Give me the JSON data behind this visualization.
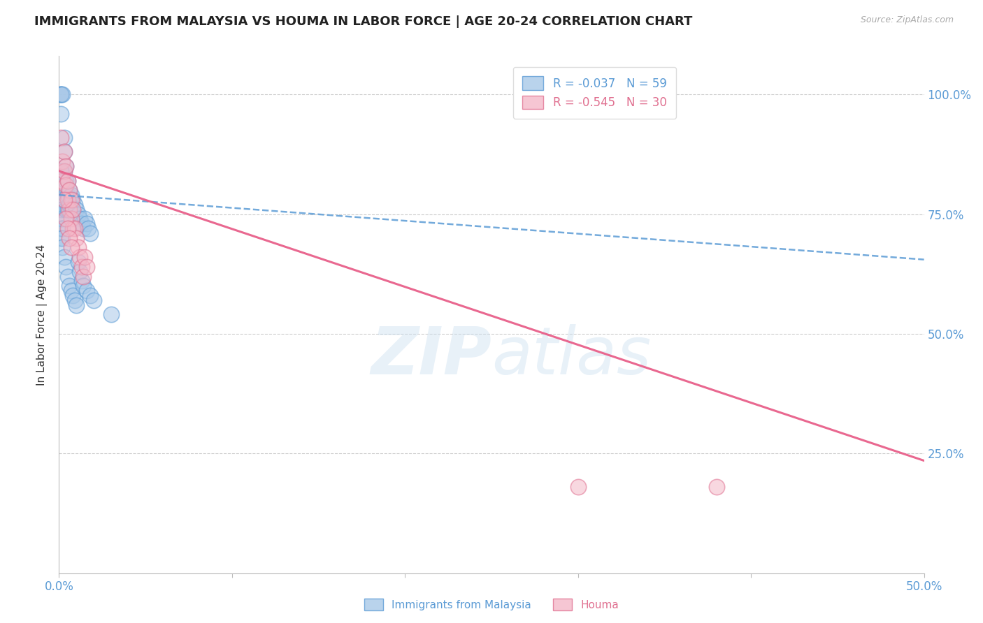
{
  "title": "IMMIGRANTS FROM MALAYSIA VS HOUMA IN LABOR FORCE | AGE 20-24 CORRELATION CHART",
  "source": "Source: ZipAtlas.com",
  "ylabel": "In Labor Force | Age 20-24",
  "xlim": [
    0.0,
    0.5
  ],
  "ylim": [
    0.0,
    1.08
  ],
  "yticks": [
    0.0,
    0.25,
    0.5,
    0.75,
    1.0
  ],
  "ytick_labels": [
    "",
    "25.0%",
    "50.0%",
    "75.0%",
    "100.0%"
  ],
  "background_color": "#ffffff",
  "blue_fill": "#a8c8e8",
  "blue_edge": "#5b9bd5",
  "pink_fill": "#f4b8c8",
  "pink_edge": "#e07090",
  "blue_line_color": "#5b9bd5",
  "pink_line_color": "#e8608a",
  "legend_R_blue": "-0.037",
  "legend_N_blue": "59",
  "legend_R_pink": "-0.545",
  "legend_N_pink": "30",
  "blue_trend_x": [
    0.0,
    0.5
  ],
  "blue_trend_y": [
    0.79,
    0.655
  ],
  "pink_trend_x": [
    0.0,
    0.5
  ],
  "pink_trend_y": [
    0.84,
    0.235
  ],
  "blue_scatter_x": [
    0.001,
    0.001,
    0.001,
    0.001,
    0.001,
    0.002,
    0.002,
    0.002,
    0.002,
    0.002,
    0.003,
    0.003,
    0.003,
    0.003,
    0.004,
    0.004,
    0.004,
    0.004,
    0.005,
    0.005,
    0.005,
    0.006,
    0.006,
    0.007,
    0.007,
    0.008,
    0.009,
    0.01,
    0.011,
    0.012,
    0.013,
    0.014,
    0.015,
    0.016,
    0.017,
    0.018,
    0.002,
    0.003,
    0.004,
    0.005,
    0.006,
    0.007,
    0.008,
    0.009,
    0.01,
    0.011,
    0.012,
    0.013,
    0.014,
    0.016,
    0.018,
    0.02,
    0.001,
    0.001,
    0.001,
    0.001,
    0.002,
    0.03,
    0.001
  ],
  "blue_scatter_y": [
    0.78,
    0.76,
    0.74,
    0.72,
    0.7,
    0.78,
    0.76,
    0.74,
    0.72,
    0.7,
    0.91,
    0.88,
    0.84,
    0.8,
    0.85,
    0.82,
    0.79,
    0.76,
    0.82,
    0.79,
    0.76,
    0.8,
    0.77,
    0.79,
    0.76,
    0.78,
    0.77,
    0.76,
    0.75,
    0.74,
    0.73,
    0.72,
    0.74,
    0.73,
    0.72,
    0.71,
    0.68,
    0.66,
    0.64,
    0.62,
    0.6,
    0.59,
    0.58,
    0.57,
    0.56,
    0.65,
    0.63,
    0.61,
    0.6,
    0.59,
    0.58,
    0.57,
    0.96,
    1.0,
    1.0,
    1.0,
    1.0,
    0.54,
    0.84
  ],
  "pink_scatter_x": [
    0.001,
    0.002,
    0.002,
    0.003,
    0.003,
    0.004,
    0.004,
    0.005,
    0.005,
    0.006,
    0.006,
    0.007,
    0.007,
    0.008,
    0.008,
    0.009,
    0.01,
    0.011,
    0.012,
    0.013,
    0.014,
    0.015,
    0.016,
    0.003,
    0.004,
    0.005,
    0.006,
    0.007,
    0.3,
    0.38
  ],
  "pink_scatter_y": [
    0.91,
    0.86,
    0.82,
    0.88,
    0.84,
    0.85,
    0.81,
    0.82,
    0.78,
    0.8,
    0.76,
    0.78,
    0.74,
    0.76,
    0.72,
    0.72,
    0.7,
    0.68,
    0.66,
    0.64,
    0.62,
    0.66,
    0.64,
    0.78,
    0.74,
    0.72,
    0.7,
    0.68,
    0.18,
    0.18
  ]
}
